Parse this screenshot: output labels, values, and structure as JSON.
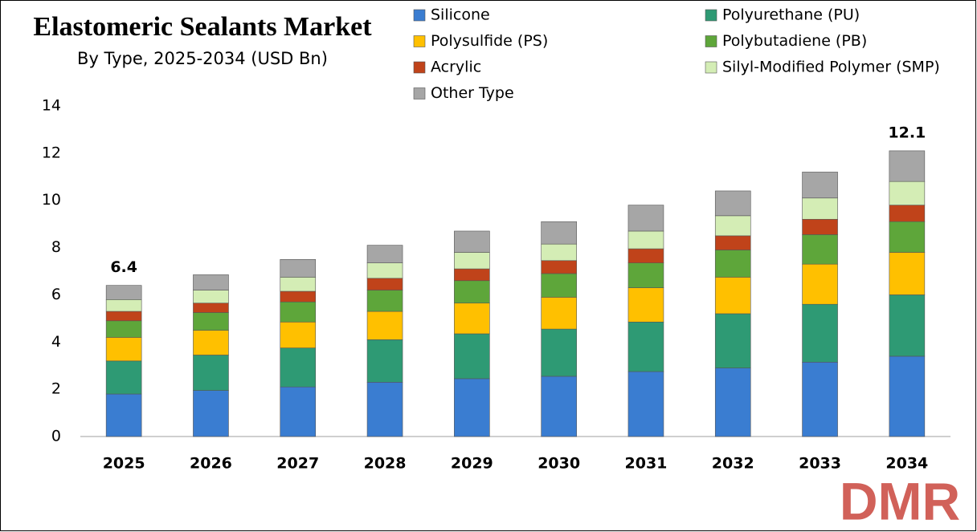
{
  "chart_data": {
    "type": "stacked_bar",
    "title": "Elastomeric Sealants Market",
    "subtitle": "By Type, 2025-2034 (USD Bn)",
    "categories": [
      "2025",
      "2026",
      "2027",
      "2028",
      "2029",
      "2030",
      "2031",
      "2032",
      "2033",
      "2034"
    ],
    "series": [
      {
        "name": "Silicone",
        "color": "#3a7dd1",
        "values": [
          1.8,
          1.95,
          2.1,
          2.3,
          2.45,
          2.55,
          2.75,
          2.9,
          3.15,
          3.4
        ]
      },
      {
        "name": "Polyurethane (PU)",
        "color": "#2e9a74",
        "values": [
          1.4,
          1.5,
          1.65,
          1.8,
          1.9,
          2.0,
          2.1,
          2.3,
          2.45,
          2.6
        ]
      },
      {
        "name": "Polysulfide (PS)",
        "color": "#ffc000",
        "values": [
          1.0,
          1.05,
          1.1,
          1.2,
          1.3,
          1.35,
          1.45,
          1.55,
          1.7,
          1.8
        ]
      },
      {
        "name": "Polybutadiene (PB)",
        "color": "#5ea63a",
        "values": [
          0.7,
          0.75,
          0.85,
          0.9,
          0.95,
          1.0,
          1.05,
          1.15,
          1.25,
          1.3
        ]
      },
      {
        "name": "Acrylic",
        "color": "#c0431a",
        "values": [
          0.4,
          0.4,
          0.45,
          0.5,
          0.5,
          0.55,
          0.6,
          0.6,
          0.65,
          0.7
        ]
      },
      {
        "name": "Silyl-Modified Polymer (SMP)",
        "color": "#d4edb5",
        "values": [
          0.5,
          0.55,
          0.6,
          0.65,
          0.7,
          0.7,
          0.75,
          0.85,
          0.9,
          1.0
        ]
      },
      {
        "name": "Other Type",
        "color": "#a6a6a6",
        "values": [
          0.6,
          0.65,
          0.75,
          0.75,
          0.9,
          0.95,
          1.1,
          1.05,
          1.1,
          1.3
        ]
      }
    ],
    "annotations": [
      "6.4",
      "12.1"
    ],
    "ylim": [
      0,
      14
    ],
    "yticks": [
      0,
      2,
      4,
      6,
      8,
      10,
      12,
      14
    ],
    "watermark": "DMR"
  }
}
